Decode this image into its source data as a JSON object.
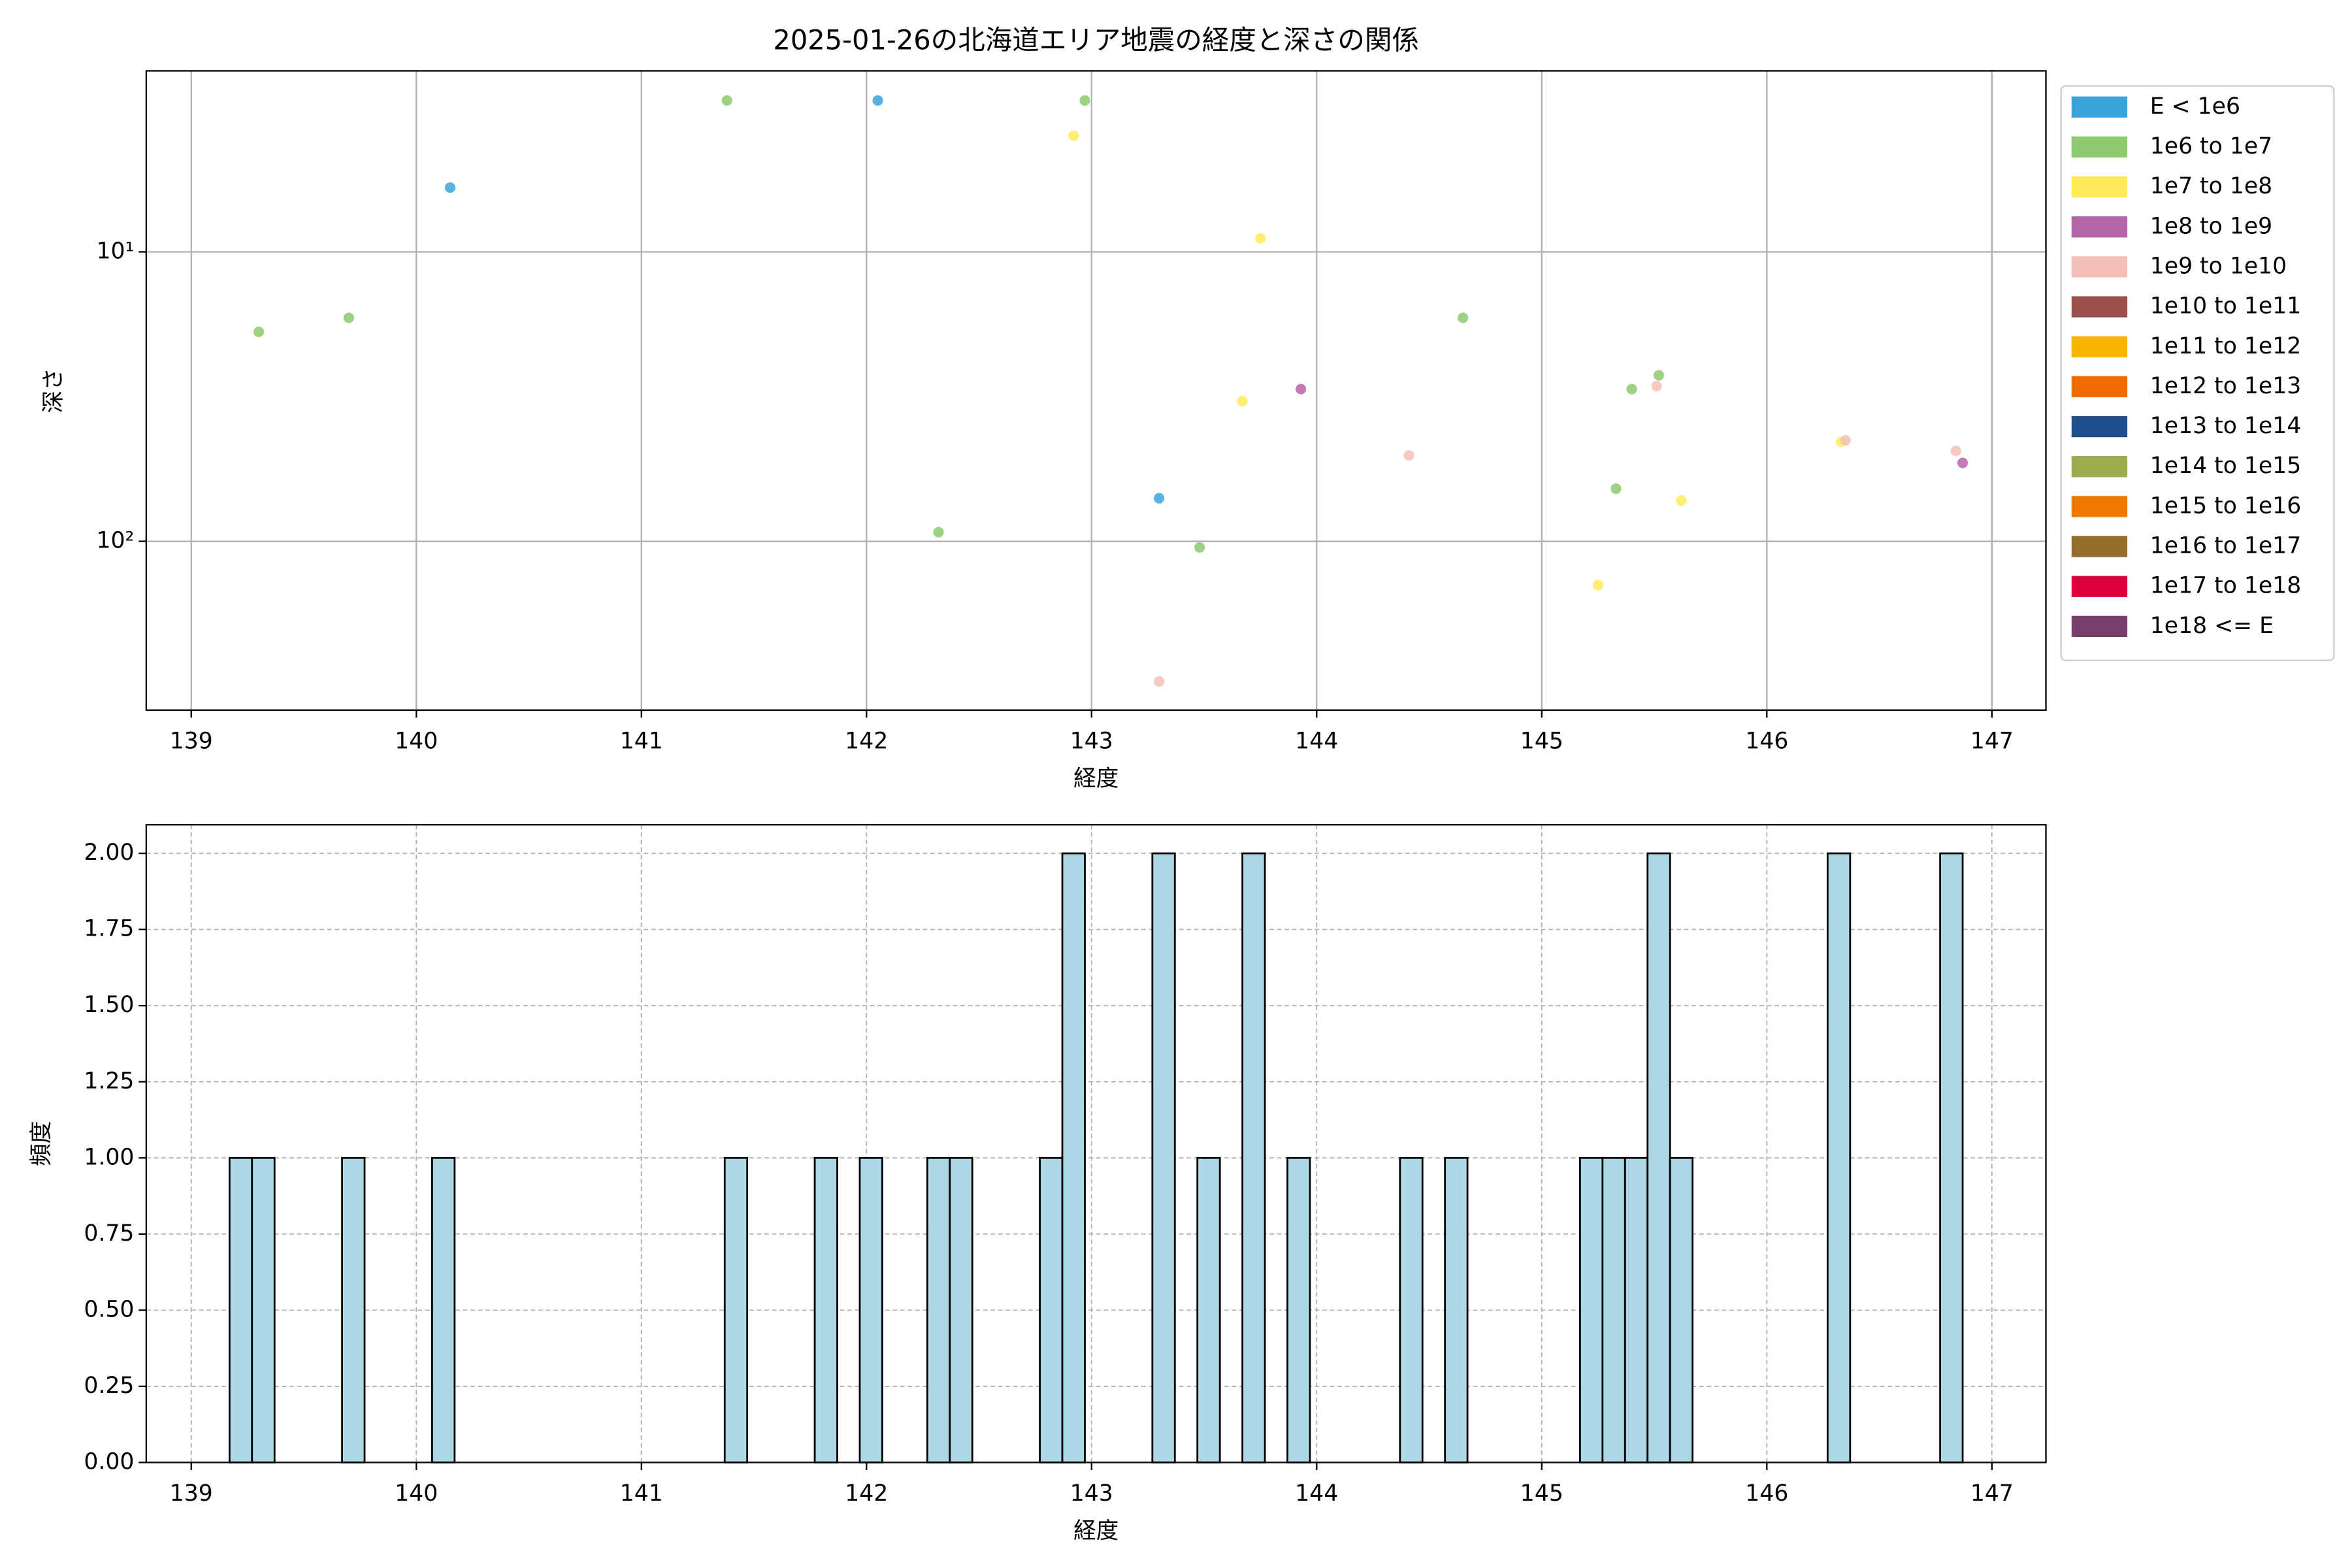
{
  "chart_data": [
    {
      "type": "scatter",
      "title": "2025-01-26の北海道エリア地震の経度と深さの関係",
      "x_label": "経度",
      "y_label": "深さ",
      "xlim": [
        138.8,
        147.24
      ],
      "xticks": [
        139,
        140,
        141,
        142,
        143,
        144,
        145,
        146,
        147
      ],
      "ylim": [
        2.37,
        383
      ],
      "yscale": "log",
      "y_inverted": true,
      "yticks": [
        {
          "value": 10,
          "label": "10¹"
        },
        {
          "value": 100,
          "label": "10²"
        }
      ],
      "grid": true,
      "legend": "right",
      "series": [
        {
          "name": "E < 1e6",
          "color": "#3ba3dc",
          "x": [
            140.15,
            142.05,
            143.3
          ],
          "y": [
            6.0,
            3.0,
            71
          ]
        },
        {
          "name": "1e6 to 1e7",
          "color": "#8ec96f",
          "x": [
            139.3,
            139.7,
            141.38,
            142.97,
            142.32,
            143.48,
            144.65,
            145.4,
            145.52,
            145.33
          ],
          "y": [
            18.9,
            16.9,
            3.0,
            3.0,
            93,
            105,
            16.9,
            29.8,
            26.7,
            65.8
          ]
        },
        {
          "name": "1e7 to 1e8",
          "color": "#ffeb5a",
          "x": [
            142.92,
            143.75,
            143.67,
            145.25,
            145.62,
            146.33
          ],
          "y": [
            3.97,
            8.98,
            32.8,
            141.6,
            72.3,
            45.3
          ]
        },
        {
          "name": "1e8 to 1e9",
          "color": "#b565a7",
          "x": [
            143.93,
            146.87
          ],
          "y": [
            29.8,
            53.6
          ]
        },
        {
          "name": "1e9 to 1e10",
          "color": "#f4bfb8",
          "x": [
            144.41,
            145.51,
            143.3,
            146.35,
            146.84
          ],
          "y": [
            50.5,
            29.1,
            305,
            44.8,
            48.7
          ]
        },
        {
          "name": "1e10 to 1e11",
          "color": "#9a4f4b",
          "x": [],
          "y": []
        },
        {
          "name": "1e11 to 1e12",
          "color": "#f8b500",
          "x": [],
          "y": []
        },
        {
          "name": "1e12 to 1e13",
          "color": "#ef6c00",
          "x": [],
          "y": []
        },
        {
          "name": "1e13 to 1e14",
          "color": "#1d4c8f",
          "x": [],
          "y": []
        },
        {
          "name": "1e14 to 1e15",
          "color": "#9cab4c",
          "x": [],
          "y": []
        },
        {
          "name": "1e15 to 1e16",
          "color": "#ee7800",
          "x": [],
          "y": []
        },
        {
          "name": "1e16 to 1e17",
          "color": "#946c2b",
          "x": [],
          "y": []
        },
        {
          "name": "1e17 to 1e18",
          "color": "#de003b",
          "x": [],
          "y": []
        },
        {
          "name": "1e18 <= E",
          "color": "#7b3f6c",
          "x": [],
          "y": []
        }
      ]
    },
    {
      "type": "histogram",
      "x_label": "経度",
      "y_label": "頻度",
      "color": "#add8e6",
      "edgecolor": "#000000",
      "xlim": [
        138.8,
        147.24
      ],
      "xticks": [
        139,
        140,
        141,
        142,
        143,
        144,
        145,
        146,
        147
      ],
      "ylim": [
        0,
        2.094
      ],
      "yticks": [
        {
          "value": 0,
          "label": "0.00"
        },
        {
          "value": 0.25,
          "label": "0.25"
        },
        {
          "value": 0.5,
          "label": "0.50"
        },
        {
          "value": 0.75,
          "label": "0.75"
        },
        {
          "value": 1,
          "label": "1.00"
        },
        {
          "value": 1.25,
          "label": "1.25"
        },
        {
          "value": 1.5,
          "label": "1.50"
        },
        {
          "value": 1.75,
          "label": "1.75"
        },
        {
          "value": 2,
          "label": "2.00"
        }
      ],
      "grid": true,
      "grid_style": "dashed",
      "bins": [
        139.17,
        139.27,
        139.37,
        139.47,
        139.57,
        139.67,
        139.77,
        139.87,
        139.97,
        140.07,
        140.17,
        140.27,
        140.37,
        140.47,
        140.57,
        140.67,
        140.77,
        140.87,
        140.97,
        141.07,
        141.17,
        141.27,
        141.37,
        141.47,
        141.57,
        141.67,
        141.77,
        141.87,
        141.97,
        142.07,
        142.17,
        142.27,
        142.37,
        142.47,
        142.57,
        142.67,
        142.77,
        142.87,
        142.97,
        143.07,
        143.17,
        143.27,
        143.37,
        143.47,
        143.57,
        143.67,
        143.77,
        143.87,
        143.97,
        144.07,
        144.17,
        144.27,
        144.37,
        144.47,
        144.57,
        144.67,
        144.77,
        144.87,
        144.97,
        145.07,
        145.17,
        145.27,
        145.37,
        145.47,
        145.57,
        145.67,
        145.77,
        145.87,
        145.97,
        146.07,
        146.17,
        146.27,
        146.37,
        146.47,
        146.57,
        146.67,
        146.77,
        146.87
      ],
      "values": [
        1,
        1,
        0,
        0,
        0,
        1,
        0,
        0,
        0,
        1,
        0,
        0,
        0,
        0,
        0,
        0,
        0,
        0,
        0,
        0,
        0,
        0,
        1,
        0,
        0,
        0,
        1,
        0,
        1,
        0,
        0,
        1,
        1,
        0,
        0,
        0,
        1,
        2,
        0,
        0,
        0,
        2,
        0,
        1,
        0,
        2,
        0,
        1,
        0,
        0,
        0,
        0,
        1,
        0,
        1,
        0,
        0,
        0,
        0,
        0,
        1,
        1,
        1,
        2,
        1,
        0,
        0,
        0,
        0,
        0,
        0,
        2,
        0,
        0,
        0,
        0,
        2
      ]
    }
  ]
}
